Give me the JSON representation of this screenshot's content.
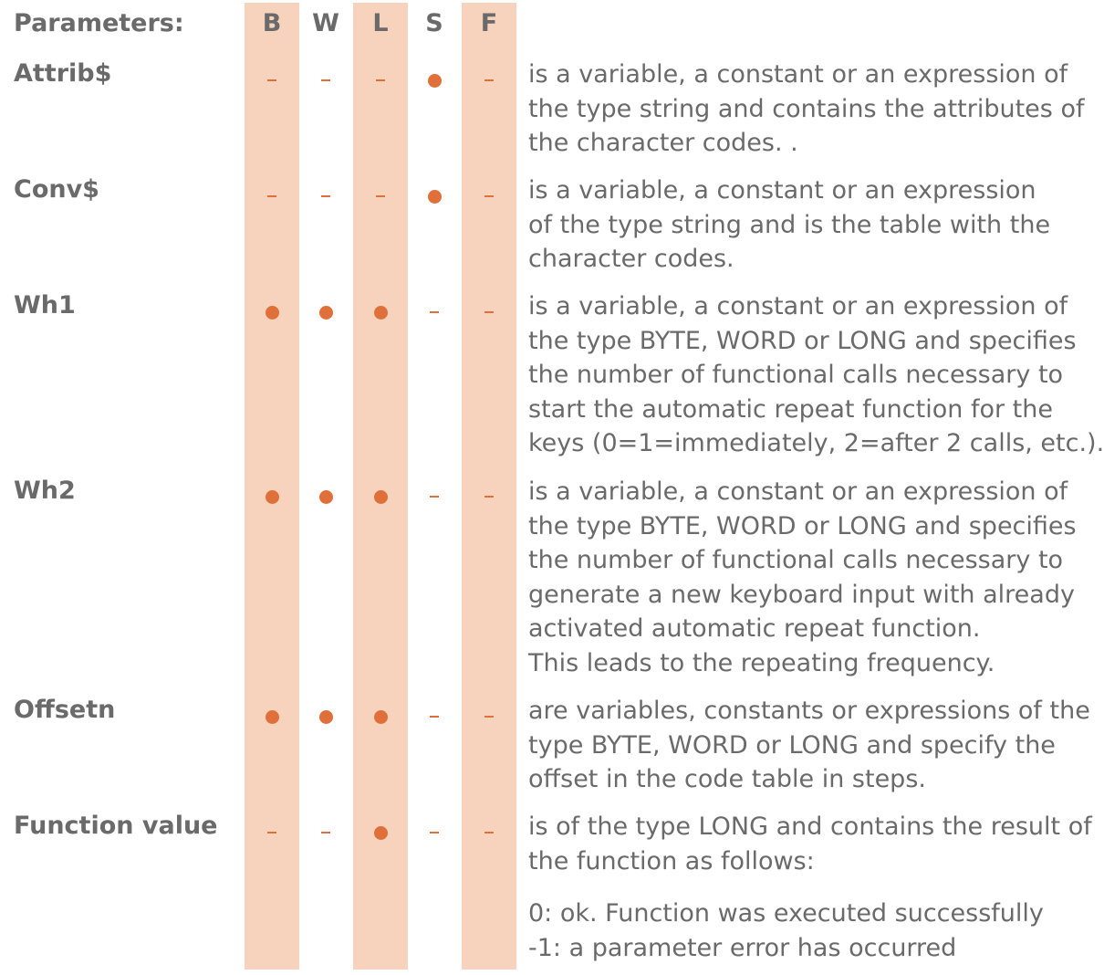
{
  "header": {
    "title": "Parameters:",
    "columns": [
      "B",
      "W",
      "L",
      "S",
      "F"
    ]
  },
  "parameters": [
    {
      "name": "Attrib$",
      "marks": [
        "dash",
        "dash",
        "dash",
        "dot",
        "dash"
      ],
      "description": [
        "is a variable, a constant or an expression of",
        "the type string and contains the attributes of",
        "the character codes. ."
      ]
    },
    {
      "name": "Conv$",
      "marks": [
        "dash",
        "dash",
        "dash",
        "dot",
        "dash"
      ],
      "description": [
        "is a variable, a constant or an expression",
        "of the type string and is the table with the",
        "character codes."
      ]
    },
    {
      "name": "Wh1",
      "marks": [
        "dot",
        "dot",
        "dot",
        "dash",
        "dash"
      ],
      "description": [
        "is a variable, a constant or an expression of",
        "the type BYTE, WORD or LONG and specifies",
        "the number of functional calls necessary to",
        "start the automatic repeat function for the",
        "keys (0=1=immediately, 2=after 2 calls, etc.)."
      ]
    },
    {
      "name": "Wh2",
      "marks": [
        "dot",
        "dot",
        "dot",
        "dash",
        "dash"
      ],
      "description": [
        "is a variable, a constant or an expression of",
        "the type BYTE, WORD or LONG and specifies",
        "the number of functional calls necessary to",
        "generate a new keyboard input with already",
        "activated automatic repeat function.",
        "This leads to the repeating frequency."
      ]
    },
    {
      "name": "Offsetn",
      "marks": [
        "dot",
        "dot",
        "dot",
        "dash",
        "dash"
      ],
      "description": [
        "are variables, constants or expressions of the",
        "type BYTE, WORD or LONG and specify the",
        "offset in the code table in steps."
      ]
    },
    {
      "name": "Function value",
      "marks": [
        "dash",
        "dash",
        "dot",
        "dash",
        "dash"
      ],
      "description": [
        "is of the type LONG and contains the result of",
        "the function as follows:"
      ]
    }
  ],
  "return_codes": [
    "0:   ok. Function was executed successfully",
    "-1: a parameter error has occurred"
  ],
  "colors": {
    "band": "#f7d2bc",
    "marker": "#e0703a",
    "text": "#6a6a6a"
  }
}
